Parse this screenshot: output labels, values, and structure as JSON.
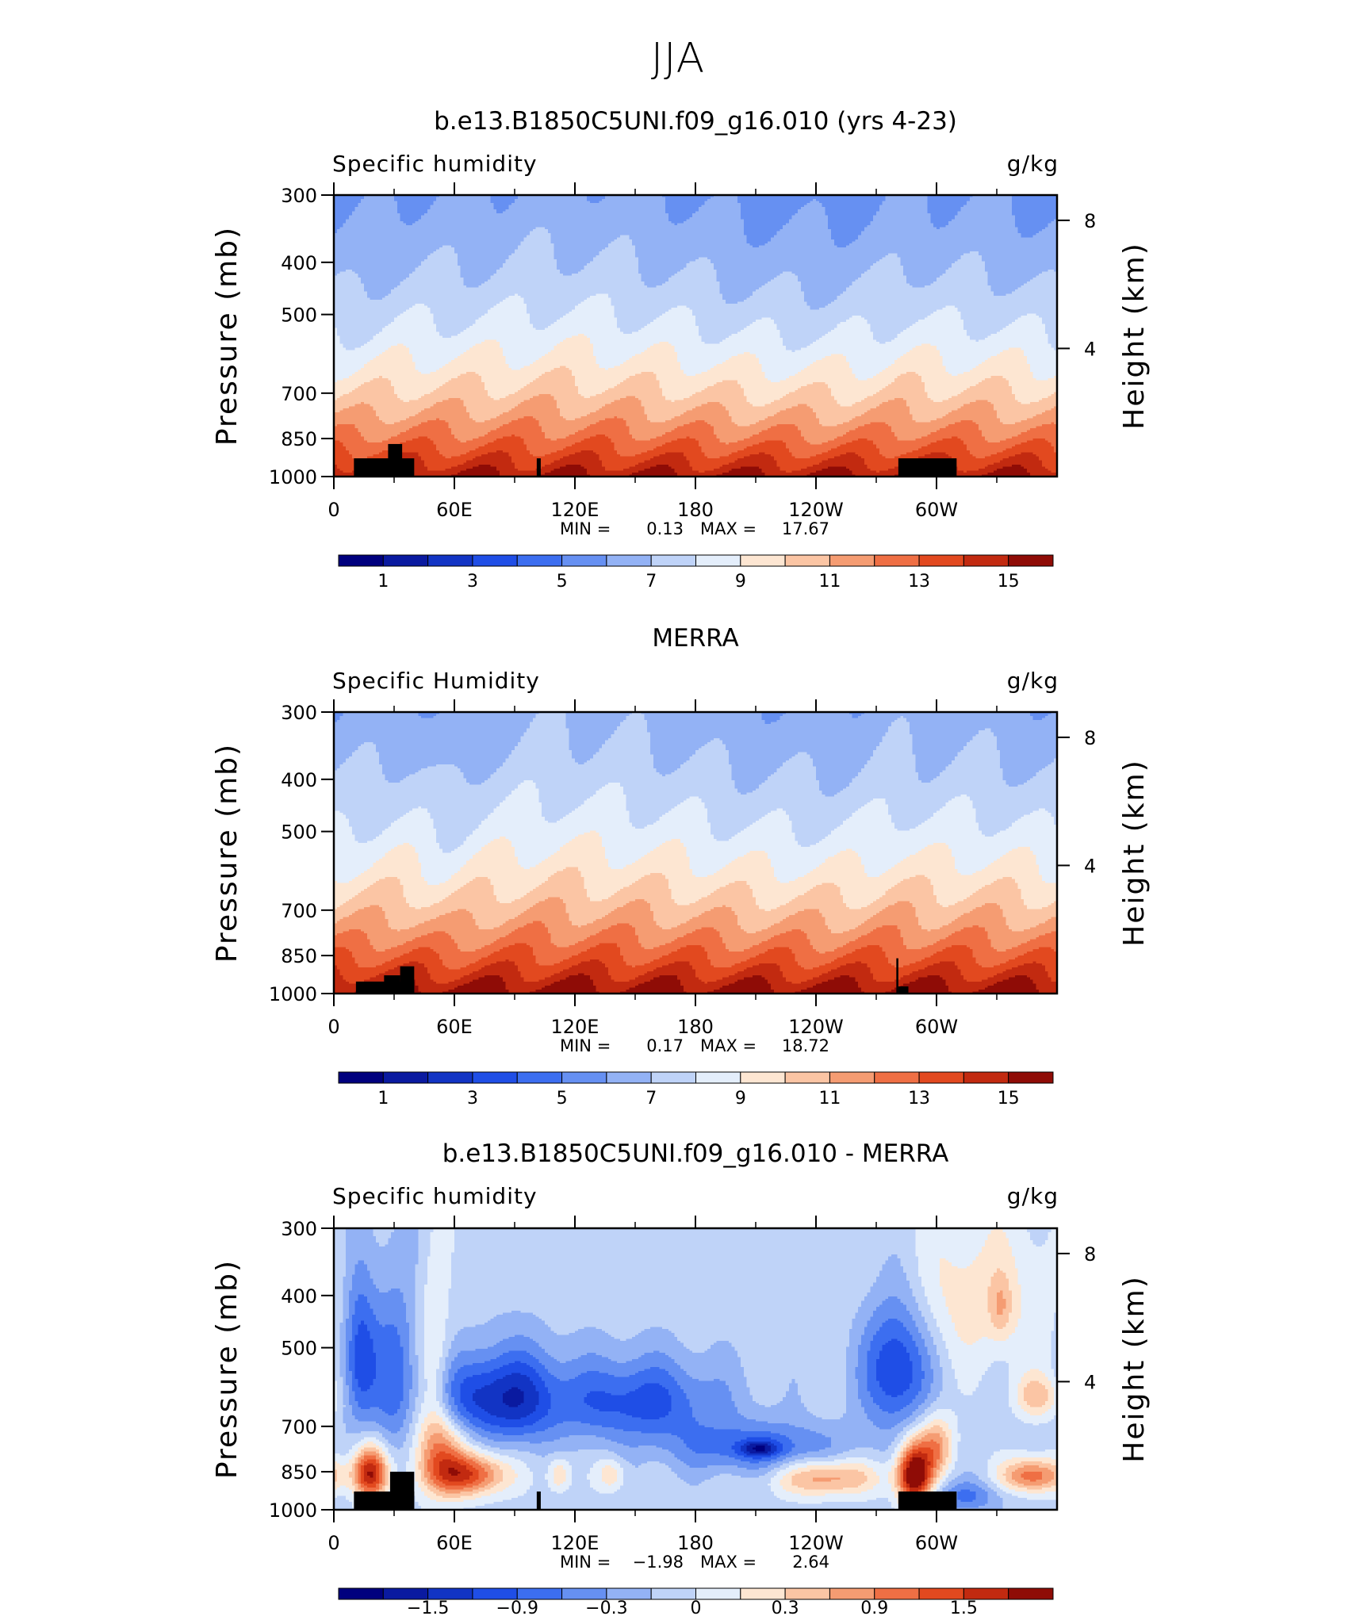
{
  "figure": {
    "title": "JJA"
  },
  "chart_data": [
    {
      "type": "heatmap",
      "title": "b.e13.B1850C5UNI.f09_g16.010 (yrs 4-23)",
      "left_label": "Specific humidity",
      "units": "g/kg",
      "ylabel": "Pressure (mb)",
      "ylabel_right": "Height (km)",
      "y_ticks": [
        "300",
        "400",
        "500",
        "700",
        "850",
        "1000"
      ],
      "y_tick_values": [
        300,
        400,
        500,
        700,
        850,
        1000
      ],
      "right_ticks": [
        "8",
        "4"
      ],
      "right_tick_values": [
        8,
        4
      ],
      "x_ticks": [
        "0",
        "60E",
        "120E",
        "180",
        "120W",
        "60W"
      ],
      "x_tick_values": [
        0,
        60,
        120,
        180,
        240,
        300
      ],
      "xlim": [
        0,
        360
      ],
      "ylim": [
        1000,
        300
      ],
      "stats": {
        "min_label": "MIN =",
        "min": "0.13",
        "max_label": "MAX =",
        "max": "17.67"
      },
      "colorbar": {
        "labels": [
          "1",
          "3",
          "5",
          "7",
          "9",
          "11",
          "13",
          "15"
        ],
        "label_box_index": [
          0.5,
          2.5,
          4.5,
          6.5,
          8.5,
          10.5,
          12.5,
          14.5
        ],
        "colors": [
          "#00007e",
          "#0a1aa0",
          "#1234c4",
          "#1f4ee6",
          "#3c6ef0",
          "#6690f2",
          "#93b2f5",
          "#bfd3f8",
          "#e4eefb",
          "#fde6d2",
          "#fbc5a4",
          "#f59c72",
          "#ef6f44",
          "#e2491f",
          "#c22a10",
          "#8f0c06"
        ]
      },
      "field": {
        "kind": "moisture",
        "base": 16.0,
        "scale": 760,
        "bands": [
          {
            "lon": 5,
            "w": 14,
            "a": -3.0
          },
          {
            "lon": 45,
            "w": 8,
            "a": -0.5
          },
          {
            "lon": 100,
            "w": 8,
            "a": 1.0
          },
          {
            "lon": 115,
            "w": 6,
            "a": 1.0
          },
          {
            "lon": 130,
            "w": 35,
            "a": 2.5
          },
          {
            "lon": 230,
            "w": 45,
            "a": -4.5
          },
          {
            "lon": 285,
            "w": 7,
            "a": 3.0
          },
          {
            "lon": 355,
            "w": 20,
            "a": -1.5
          }
        ]
      },
      "terrain": [
        {
          "lon0": 10,
          "lon1": 40,
          "p": 925
        },
        {
          "lon0": 27,
          "lon1": 34,
          "p": 870
        },
        {
          "lon0": 101,
          "lon1": 103,
          "p": 925
        },
        {
          "lon0": 281,
          "lon1": 310,
          "p": 925
        }
      ]
    },
    {
      "type": "heatmap",
      "title": "MERRA",
      "left_label": "Specific Humidity",
      "units": "g/kg",
      "ylabel": "Pressure (mb)",
      "ylabel_right": "Height (km)",
      "y_ticks": [
        "300",
        "400",
        "500",
        "700",
        "850",
        "1000"
      ],
      "y_tick_values": [
        300,
        400,
        500,
        700,
        850,
        1000
      ],
      "right_ticks": [
        "8",
        "4"
      ],
      "right_tick_values": [
        8,
        4
      ],
      "x_ticks": [
        "0",
        "60E",
        "120E",
        "180",
        "120W",
        "60W"
      ],
      "x_tick_values": [
        0,
        60,
        120,
        180,
        240,
        300
      ],
      "xlim": [
        0,
        360
      ],
      "ylim": [
        1000,
        300
      ],
      "stats": {
        "min_label": "MIN =",
        "min": "0.17",
        "max_label": "MAX =",
        "max": "18.72"
      },
      "colorbar": {
        "labels": [
          "1",
          "3",
          "5",
          "7",
          "9",
          "11",
          "13",
          "15"
        ],
        "label_box_index": [
          0.5,
          2.5,
          4.5,
          6.5,
          8.5,
          10.5,
          12.5,
          14.5
        ],
        "colors": [
          "#00007e",
          "#0a1aa0",
          "#1234c4",
          "#1f4ee6",
          "#3c6ef0",
          "#6690f2",
          "#93b2f5",
          "#bfd3f8",
          "#e4eefb",
          "#fde6d2",
          "#fbc5a4",
          "#f59c72",
          "#ef6f44",
          "#e2491f",
          "#c22a10",
          "#8f0c06"
        ]
      },
      "field": {
        "kind": "moisture",
        "base": 16.5,
        "scale": 800,
        "bands": [
          {
            "lon": 5,
            "w": 14,
            "a": -2.5
          },
          {
            "lon": 55,
            "w": 10,
            "a": -6.0
          },
          {
            "lon": 100,
            "w": 8,
            "a": 1.5
          },
          {
            "lon": 115,
            "w": 6,
            "a": 1.5
          },
          {
            "lon": 140,
            "w": 30,
            "a": 2.5
          },
          {
            "lon": 230,
            "w": 45,
            "a": -4.0
          },
          {
            "lon": 280,
            "w": 8,
            "a": 3.0
          },
          {
            "lon": 355,
            "w": 15,
            "a": -2.0
          }
        ]
      },
      "terrain": [
        {
          "lon0": 11,
          "lon1": 40,
          "p": 950
        },
        {
          "lon0": 25,
          "lon1": 33,
          "p": 925
        },
        {
          "lon0": 33,
          "lon1": 40,
          "p": 890
        },
        {
          "lon0": 280,
          "lon1": 281,
          "p": 860
        },
        {
          "lon0": 281,
          "lon1": 286,
          "p": 970
        }
      ]
    },
    {
      "type": "heatmap",
      "title": "b.e13.B1850C5UNI.f09_g16.010 - MERRA",
      "left_label": "Specific humidity",
      "units": "g/kg",
      "ylabel": "Pressure (mb)",
      "ylabel_right": "Height (km)",
      "y_ticks": [
        "300",
        "400",
        "500",
        "700",
        "850",
        "1000"
      ],
      "y_tick_values": [
        300,
        400,
        500,
        700,
        850,
        1000
      ],
      "right_ticks": [
        "8",
        "4"
      ],
      "right_tick_values": [
        8,
        4
      ],
      "x_ticks": [
        "0",
        "60E",
        "120E",
        "180",
        "120W",
        "60W"
      ],
      "x_tick_values": [
        0,
        60,
        120,
        180,
        240,
        300
      ],
      "xlim": [
        0,
        360
      ],
      "ylim": [
        1000,
        300
      ],
      "stats": {
        "min_label": "MIN =",
        "min": "−1.98",
        "max_label": "MAX =",
        "max": "2.64"
      },
      "colorbar": {
        "labels": [
          "−1.5",
          "−0.9",
          "−0.3",
          "0",
          "0.3",
          "0.9",
          "1.5"
        ],
        "label_box_index": [
          2,
          4,
          6,
          8,
          10,
          12,
          14
        ],
        "colors": [
          "#00007e",
          "#0a1aa0",
          "#1234c4",
          "#1f4ee6",
          "#3c6ef0",
          "#6690f2",
          "#93b2f5",
          "#bfd3f8",
          "#e4eefb",
          "#fde6d2",
          "#fbc5a4",
          "#f59c72",
          "#ef6f44",
          "#e2491f",
          "#c22a10",
          "#8f0c06"
        ]
      },
      "field": {
        "kind": "difference",
        "base": -0.15,
        "blobs": [
          {
            "lon": 13,
            "p": 520,
            "wl": 6,
            "wp": 120,
            "a": -1.3
          },
          {
            "lon": 18,
            "p": 855,
            "wl": 6,
            "wp": 70,
            "a": 2.3
          },
          {
            "lon": 30,
            "p": 560,
            "wl": 8,
            "wp": 160,
            "a": -0.9
          },
          {
            "lon": 50,
            "p": 500,
            "wl": 5,
            "wp": 150,
            "a": 0.5
          },
          {
            "lon": 52,
            "p": 780,
            "wl": 9,
            "wp": 110,
            "a": 1.3
          },
          {
            "lon": 68,
            "p": 860,
            "wl": 13,
            "wp": 55,
            "a": 1.8
          },
          {
            "lon": 65,
            "p": 620,
            "wl": 14,
            "wp": 70,
            "a": -0.9
          },
          {
            "lon": 90,
            "p": 620,
            "wl": 16,
            "wp": 90,
            "a": -1.3
          },
          {
            "lon": 112,
            "p": 860,
            "wl": 4,
            "wp": 45,
            "a": 0.8
          },
          {
            "lon": 138,
            "p": 860,
            "wl": 5,
            "wp": 45,
            "a": 0.7
          },
          {
            "lon": 150,
            "p": 630,
            "wl": 30,
            "wp": 80,
            "a": -1.2
          },
          {
            "lon": 212,
            "p": 770,
            "wl": 30,
            "wp": 60,
            "a": -1.0
          },
          {
            "lon": 212,
            "p": 770,
            "wl": 7,
            "wp": 18,
            "a": -1.0
          },
          {
            "lon": 245,
            "p": 870,
            "wl": 18,
            "wp": 50,
            "a": 1.3
          },
          {
            "lon": 280,
            "p": 540,
            "wl": 12,
            "wp": 110,
            "a": -1.5
          },
          {
            "lon": 289,
            "p": 860,
            "wl": 6,
            "wp": 80,
            "a": 2.8
          },
          {
            "lon": 300,
            "p": 760,
            "wl": 6,
            "wp": 70,
            "a": 1.2
          },
          {
            "lon": 315,
            "p": 945,
            "wl": 12,
            "wp": 45,
            "a": -0.8
          },
          {
            "lon": 332,
            "p": 420,
            "wl": 4,
            "wp": 40,
            "a": 0.6
          },
          {
            "lon": 348,
            "p": 865,
            "wl": 11,
            "wp": 45,
            "a": 1.6
          },
          {
            "lon": 350,
            "p": 615,
            "wl": 8,
            "wp": 40,
            "a": 0.9
          },
          {
            "lon": 318,
            "p": 400,
            "wl": 30,
            "wp": 100,
            "a": 0.6
          }
        ]
      },
      "terrain": [
        {
          "lon0": 10,
          "lon1": 40,
          "p": 925
        },
        {
          "lon0": 28,
          "lon1": 40,
          "p": 850
        },
        {
          "lon0": 101,
          "lon1": 103,
          "p": 925
        },
        {
          "lon0": 281,
          "lon1": 310,
          "p": 925
        }
      ]
    }
  ]
}
